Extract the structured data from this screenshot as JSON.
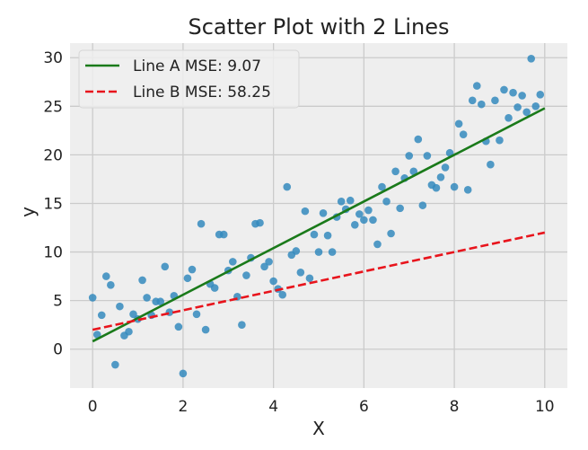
{
  "chart_data": {
    "type": "scatter",
    "title": "Scatter Plot with 2 Lines",
    "xlabel": "X",
    "ylabel": "y",
    "xlim": [
      -0.5,
      10.5
    ],
    "ylim": [
      -4,
      31.5
    ],
    "xticks": [
      0,
      2,
      4,
      6,
      8,
      10
    ],
    "yticks": [
      0,
      5,
      10,
      15,
      20,
      25,
      30
    ],
    "grid": true,
    "legend_position": "top-left",
    "point_color": "#348ABD",
    "points": [
      [
        0.0,
        5.3
      ],
      [
        0.1,
        1.5
      ],
      [
        0.2,
        3.5
      ],
      [
        0.3,
        7.5
      ],
      [
        0.4,
        6.6
      ],
      [
        0.5,
        -1.6
      ],
      [
        0.6,
        4.4
      ],
      [
        0.7,
        1.4
      ],
      [
        0.8,
        1.8
      ],
      [
        0.9,
        3.6
      ],
      [
        1.0,
        3.1
      ],
      [
        1.1,
        7.1
      ],
      [
        1.2,
        5.3
      ],
      [
        1.3,
        3.5
      ],
      [
        1.4,
        4.9
      ],
      [
        1.5,
        4.9
      ],
      [
        1.6,
        8.5
      ],
      [
        1.7,
        3.8
      ],
      [
        1.8,
        5.5
      ],
      [
        1.9,
        2.3
      ],
      [
        2.0,
        -2.5
      ],
      [
        2.1,
        7.3
      ],
      [
        2.2,
        8.2
      ],
      [
        2.3,
        3.6
      ],
      [
        2.4,
        12.9
      ],
      [
        2.5,
        2.0
      ],
      [
        2.6,
        6.7
      ],
      [
        2.7,
        6.3
      ],
      [
        2.8,
        11.8
      ],
      [
        2.9,
        11.8
      ],
      [
        3.0,
        8.1
      ],
      [
        3.1,
        9.0
      ],
      [
        3.2,
        5.4
      ],
      [
        3.3,
        2.5
      ],
      [
        3.4,
        7.6
      ],
      [
        3.5,
        9.4
      ],
      [
        3.6,
        12.9
      ],
      [
        3.7,
        13.0
      ],
      [
        3.8,
        8.5
      ],
      [
        3.9,
        9.0
      ],
      [
        4.0,
        7.0
      ],
      [
        4.1,
        6.2
      ],
      [
        4.2,
        5.6
      ],
      [
        4.3,
        16.7
      ],
      [
        4.4,
        9.7
      ],
      [
        4.5,
        10.1
      ],
      [
        4.6,
        7.9
      ],
      [
        4.7,
        14.2
      ],
      [
        4.8,
        7.3
      ],
      [
        4.9,
        11.8
      ],
      [
        5.0,
        10.0
      ],
      [
        5.1,
        14.0
      ],
      [
        5.2,
        11.7
      ],
      [
        5.3,
        10.0
      ],
      [
        5.4,
        13.6
      ],
      [
        5.5,
        15.2
      ],
      [
        5.6,
        14.4
      ],
      [
        5.7,
        15.3
      ],
      [
        5.8,
        12.8
      ],
      [
        5.9,
        13.9
      ],
      [
        6.0,
        13.3
      ],
      [
        6.1,
        14.3
      ],
      [
        6.2,
        13.3
      ],
      [
        6.3,
        10.8
      ],
      [
        6.4,
        16.7
      ],
      [
        6.5,
        15.2
      ],
      [
        6.6,
        11.9
      ],
      [
        6.7,
        18.3
      ],
      [
        6.8,
        14.5
      ],
      [
        6.9,
        17.6
      ],
      [
        7.0,
        19.9
      ],
      [
        7.1,
        18.3
      ],
      [
        7.2,
        21.6
      ],
      [
        7.3,
        14.8
      ],
      [
        7.4,
        19.9
      ],
      [
        7.5,
        16.9
      ],
      [
        7.6,
        16.6
      ],
      [
        7.7,
        17.7
      ],
      [
        7.8,
        18.7
      ],
      [
        7.9,
        20.2
      ],
      [
        8.0,
        16.7
      ],
      [
        8.1,
        23.2
      ],
      [
        8.2,
        22.1
      ],
      [
        8.3,
        16.4
      ],
      [
        8.4,
        25.6
      ],
      [
        8.5,
        27.1
      ],
      [
        8.6,
        25.2
      ],
      [
        8.7,
        21.4
      ],
      [
        8.8,
        19.0
      ],
      [
        8.9,
        25.6
      ],
      [
        9.0,
        21.5
      ],
      [
        9.1,
        26.7
      ],
      [
        9.2,
        23.8
      ],
      [
        9.3,
        26.4
      ],
      [
        9.4,
        24.9
      ],
      [
        9.5,
        26.1
      ],
      [
        9.6,
        24.4
      ],
      [
        9.7,
        29.9
      ],
      [
        9.8,
        25.0
      ],
      [
        9.9,
        26.2
      ]
    ],
    "lines": [
      {
        "name": "Line A MSE: 9.07",
        "color": "#1a7a1a",
        "dash": "solid",
        "x": [
          0,
          10
        ],
        "y": [
          0.8,
          24.8
        ]
      },
      {
        "name": "Line B MSE: 58.25",
        "color": "#e8141c",
        "dash": "dashed",
        "x": [
          0,
          10
        ],
        "y": [
          2.0,
          12.0
        ]
      }
    ]
  }
}
